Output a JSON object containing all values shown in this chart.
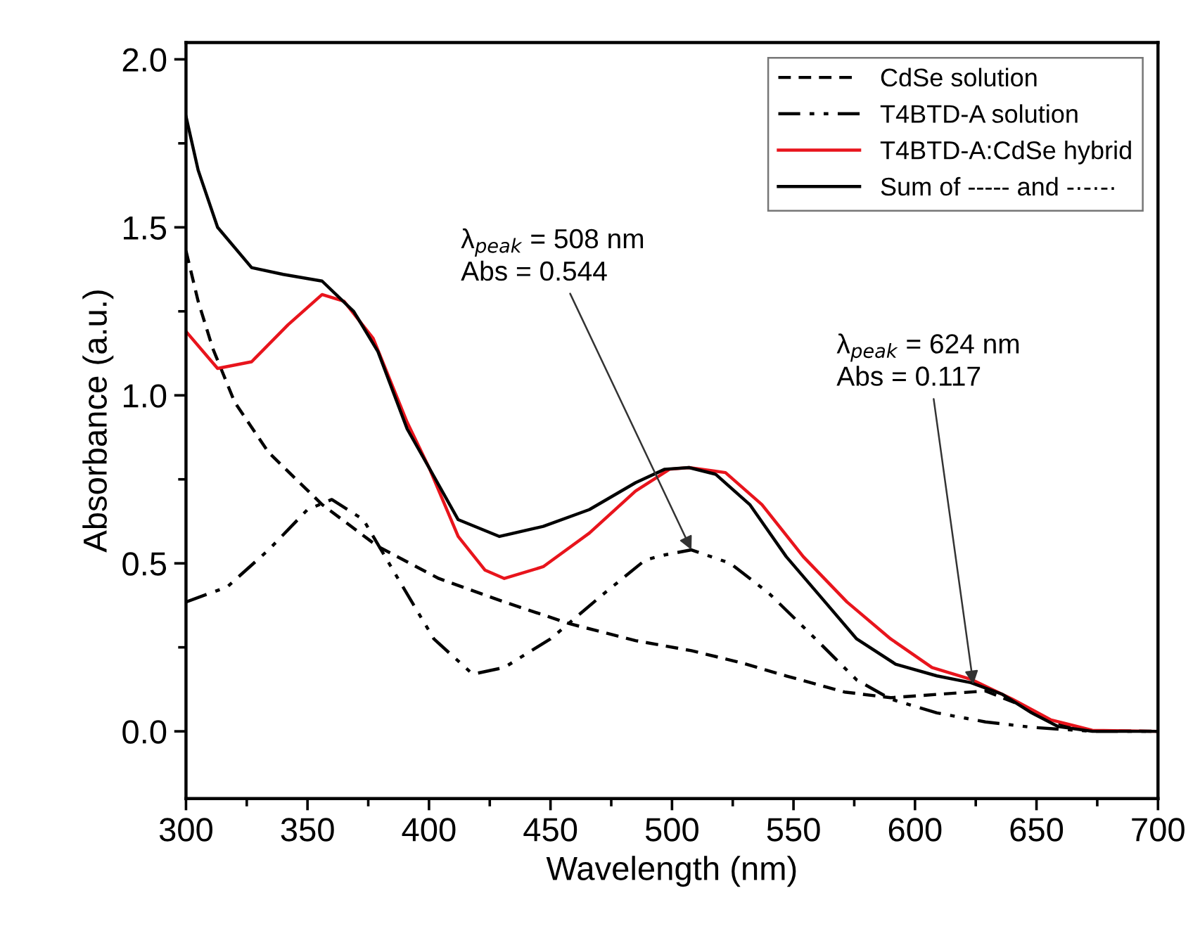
{
  "chart_data": {
    "type": "line",
    "xlabel": "Wavelength (nm)",
    "ylabel": "Absorbance (a.u.)",
    "xlim": [
      300,
      700
    ],
    "ylim": [
      -0.2,
      2.05
    ],
    "xticks": [
      300,
      350,
      400,
      450,
      500,
      550,
      600,
      650,
      700
    ],
    "yticks": [
      {
        "value": 0,
        "label": "0.0"
      },
      {
        "value": 0.5,
        "label": "0.5"
      },
      {
        "value": 1,
        "label": "1.0"
      },
      {
        "value": 1.5,
        "label": "1.5"
      },
      {
        "value": 2,
        "label": "2.0"
      }
    ],
    "grid": false,
    "legend": "top right",
    "series": [
      {
        "name": "CdSe solution",
        "color": "#000000",
        "line_style": "dashed",
        "x": [
          300,
          305,
          311,
          320,
          334,
          356,
          379,
          404,
          431,
          458,
          485,
          508,
          528,
          547,
          571,
          590,
          609,
          629,
          642,
          656,
          673,
          700
        ],
        "values": [
          1.43,
          1.28,
          1.14,
          0.98,
          0.83,
          0.675,
          0.55,
          0.455,
          0.385,
          0.32,
          0.27,
          0.24,
          0.205,
          0.165,
          0.117,
          0.1,
          0.11,
          0.12,
          0.083,
          0.028,
          0.002,
          0.0
        ]
      },
      {
        "name": "T4BTD-A solution",
        "color": "#000000",
        "line_style": "dashdot",
        "x": [
          300,
          317,
          334,
          350,
          360,
          373,
          386,
          402,
          418,
          431,
          450,
          472,
          489,
          497,
          508,
          524,
          540,
          557,
          576,
          590,
          609,
          629,
          648,
          673,
          700
        ],
        "values": [
          0.385,
          0.43,
          0.54,
          0.66,
          0.69,
          0.63,
          0.47,
          0.275,
          0.17,
          0.19,
          0.275,
          0.41,
          0.51,
          0.525,
          0.54,
          0.5,
          0.41,
          0.29,
          0.153,
          0.096,
          0.055,
          0.028,
          0.012,
          0.0,
          0.0
        ]
      },
      {
        "name": "T4BTD-A:CdSe hybrid",
        "color": "#e8141c",
        "line_style": "solid",
        "x": [
          300,
          313,
          327,
          342,
          356,
          365,
          377,
          391,
          400,
          412,
          423,
          431,
          447,
          466,
          485,
          499,
          507,
          522,
          537,
          554,
          572,
          590,
          607,
          623,
          640,
          656,
          673,
          700
        ],
        "values": [
          1.19,
          1.08,
          1.1,
          1.21,
          1.3,
          1.28,
          1.17,
          0.92,
          0.785,
          0.58,
          0.48,
          0.455,
          0.49,
          0.59,
          0.715,
          0.78,
          0.785,
          0.77,
          0.675,
          0.52,
          0.385,
          0.275,
          0.19,
          0.155,
          0.096,
          0.034,
          0.003,
          0.0
        ]
      },
      {
        "name": "Sum of ----- and -·-·-·",
        "color": "#000000",
        "line_style": "solid",
        "x": [
          300,
          305,
          313,
          327,
          340,
          356,
          369,
          379,
          391,
          400,
          412,
          429,
          447,
          466,
          485,
          497,
          507,
          518,
          532,
          547,
          563,
          576,
          592,
          609,
          623,
          636,
          648,
          659,
          673,
          700
        ],
        "values": [
          1.83,
          1.67,
          1.5,
          1.38,
          1.36,
          1.34,
          1.25,
          1.13,
          0.9,
          0.785,
          0.63,
          0.58,
          0.61,
          0.66,
          0.74,
          0.78,
          0.785,
          0.765,
          0.675,
          0.52,
          0.385,
          0.275,
          0.2,
          0.165,
          0.145,
          0.11,
          0.055,
          0.014,
          0.0,
          0.0
        ]
      }
    ],
    "annotations": [
      {
        "text": "λ$_{peak}$ = 508 nm\nAbs = 0.544",
        "x": 508,
        "y": 0.54
      },
      {
        "text": "λ$_{peak}$ = 624 nm\nAbs = 0.117",
        "x": 624,
        "y": 0.14
      }
    ]
  }
}
